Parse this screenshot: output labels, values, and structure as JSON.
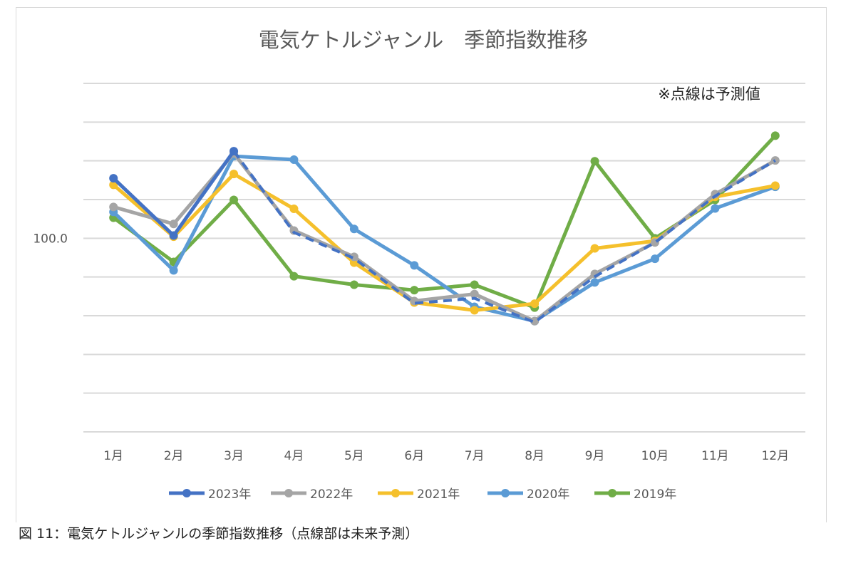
{
  "chart_data": {
    "type": "line",
    "title": "電気ケトルジャンル　季節指数推移",
    "annotation": "※点線は予測値",
    "categories": [
      "1月",
      "2月",
      "3月",
      "4月",
      "5月",
      "6月",
      "7月",
      "8月",
      "9月",
      "10月",
      "11月",
      "12月"
    ],
    "y_tick_labels": [
      "100.0"
    ],
    "ylim": [
      50,
      140
    ],
    "grid": true,
    "legend": "bottom",
    "series": [
      {
        "name": "2023年",
        "color": "#4472C4",
        "values": [
          115.5,
          100.7,
          122.5,
          101.5,
          94.8,
          83.2,
          84.5,
          78.3,
          90.1,
          98.9,
          110.9,
          120.1
        ],
        "actual_months": 3
      },
      {
        "name": "2022年",
        "color": "#A5A5A5",
        "values": [
          108.1,
          103.7,
          121.9,
          102.0,
          95.2,
          83.8,
          85.6,
          78.6,
          90.8,
          98.9,
          111.4,
          120.1
        ]
      },
      {
        "name": "2021年",
        "color": "#F5C02C",
        "values": [
          113.8,
          100.4,
          116.6,
          107.6,
          93.7,
          83.4,
          81.4,
          83.1,
          97.4,
          99.3,
          110.7,
          113.6
        ]
      },
      {
        "name": "2020年",
        "color": "#5B9BD5",
        "values": [
          106.8,
          91.7,
          121.2,
          120.3,
          102.4,
          93.0,
          82.3,
          78.6,
          88.6,
          94.7,
          107.7,
          113.3
        ]
      },
      {
        "name": "2019年",
        "color": "#70AD47",
        "values": [
          105.3,
          93.9,
          109.9,
          90.2,
          88.0,
          86.6,
          88.0,
          82.1,
          119.9,
          100.0,
          109.9,
          126.5
        ]
      }
    ]
  },
  "caption": "図 11：電気ケトルジャンルの季節指数推移（点線部は未来予測）"
}
